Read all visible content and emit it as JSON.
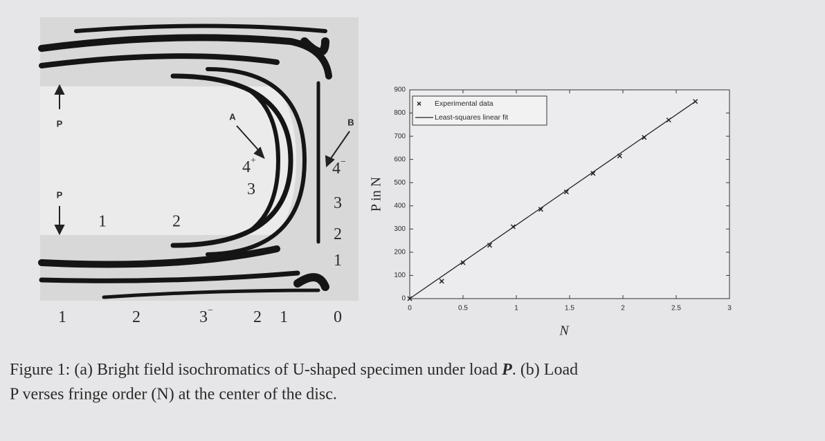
{
  "figure_a": {
    "load_labels": [
      "P",
      "P"
    ],
    "point_labels": [
      "A",
      "B"
    ],
    "inner_fringes": [
      {
        "text": "4",
        "sup": "+"
      },
      {
        "text": "3"
      }
    ],
    "slot_fringes": [
      "1",
      "2"
    ],
    "right_fringes": [
      {
        "text": "4",
        "sup": "−"
      },
      {
        "text": "3"
      },
      {
        "text": "2"
      },
      {
        "text": "1"
      }
    ],
    "bottom_fringes": [
      {
        "text": "1"
      },
      {
        "text": "2"
      },
      {
        "text": "3",
        "sup": "−"
      },
      {
        "text": "2"
      },
      {
        "text": "1"
      },
      {
        "text": "0"
      }
    ]
  },
  "chart_data": {
    "type": "scatter",
    "xlabel": "N",
    "ylabel": "P in N",
    "xlim": [
      0,
      3
    ],
    "ylim": [
      0,
      900
    ],
    "xticks": [
      0,
      0.5,
      1,
      1.5,
      2,
      2.5,
      3
    ],
    "yticks": [
      0,
      100,
      200,
      300,
      400,
      500,
      600,
      700,
      800,
      900
    ],
    "legend": "upper left",
    "series": [
      {
        "name": "Experimental data",
        "color": "#222222",
        "marker": "x",
        "x": [
          0,
          0.3,
          0.5,
          0.75,
          0.97,
          1.23,
          1.47,
          1.72,
          1.97,
          2.2,
          2.43,
          2.68
        ],
        "values": [
          0,
          75,
          155,
          230,
          310,
          385,
          460,
          540,
          615,
          695,
          770,
          850
        ]
      },
      {
        "name": "Least-squares linear fit",
        "color": "#222222",
        "marker": "line",
        "x": [
          0,
          2.68
        ],
        "values": [
          0,
          850
        ]
      }
    ]
  },
  "caption": {
    "label": "Figure 1:",
    "line1": "(a) Bright field isochromatics of U-shaped specimen under load",
    "symbol": "P",
    "line1_end": ". (b) Load",
    "line2": "P verses fringe order (N) at the center of the disc."
  }
}
